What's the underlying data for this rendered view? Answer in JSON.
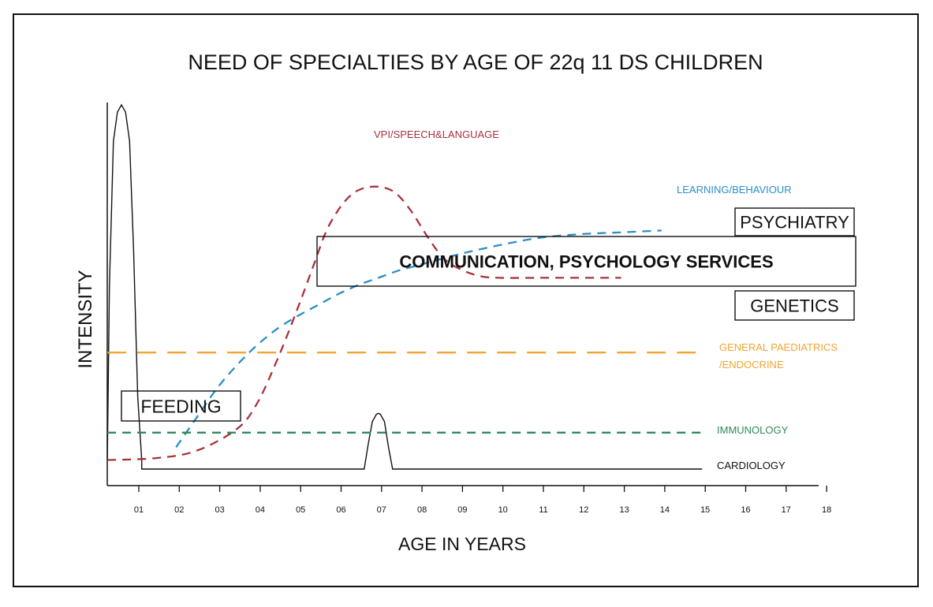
{
  "chart_data": {
    "type": "line",
    "title": "NEED OF SPECIALTIES BY AGE OF 22q 11 DS CHILDREN",
    "xlabel": "AGE IN YEARS",
    "ylabel": "INTENSITY",
    "x_ticks": [
      "01",
      "02",
      "03",
      "04",
      "05",
      "06",
      "07",
      "08",
      "09",
      "10",
      "11",
      "12",
      "13",
      "14",
      "15",
      "16",
      "17",
      "18"
    ],
    "xlim": [
      0.5,
      18
    ],
    "ylim": [
      0,
      100
    ],
    "series": [
      {
        "name": "CARDIOLOGY",
        "color": "#111111",
        "style": "solid",
        "x": [
          0.3,
          0.35,
          0.45,
          0.55,
          0.65,
          0.75,
          0.85,
          0.95,
          1.05,
          1.15,
          1.15,
          6.65,
          6.75,
          6.85,
          6.95,
          7.0,
          7.05,
          7.15,
          7.25,
          7.35,
          15.0
        ],
        "y": [
          2.5,
          50,
          90,
          98,
          100,
          98,
          90,
          60,
          20,
          2.5,
          0,
          0,
          7,
          13,
          15,
          15.3,
          15,
          13,
          6,
          0,
          0
        ]
      },
      {
        "name": "VPI/SPEECH&LANGUAGE",
        "color": "#a8323c",
        "style": "dashed",
        "x": [
          0.3,
          1.5,
          2.5,
          3.5,
          4.0,
          4.5,
          5.0,
          5.4,
          5.7,
          6.0,
          6.3,
          6.6,
          7.0,
          7.4,
          7.8,
          8.2,
          8.6,
          9.0,
          9.5,
          10.0,
          11.0,
          12.0,
          13.0
        ],
        "y": [
          2.5,
          3,
          5,
          11,
          18,
          30,
          44,
          56,
          65,
          71,
          75,
          77,
          77.5,
          76,
          71,
          64,
          58,
          55,
          53,
          52.5,
          52.5,
          52.5,
          52.5
        ]
      },
      {
        "name": "LEARNING/BEHAVIOUR",
        "color": "#2a8fc6",
        "style": "dashed",
        "x": [
          2.0,
          2.5,
          3.0,
          3.5,
          4.0,
          4.5,
          5.0,
          5.5,
          6.0,
          6.5,
          7.0,
          7.5,
          8.0,
          9.0,
          10.0,
          11.0,
          12.0,
          13.0,
          14.0
        ],
        "y": [
          6,
          14,
          22,
          28.5,
          34,
          38.5,
          42,
          45,
          48,
          50.5,
          52.5,
          54.5,
          56,
          59,
          61.5,
          63.5,
          64.5,
          65,
          65.5
        ]
      },
      {
        "name": "GENERAL PAEDIATRICS /ENDOCRINE",
        "color": "#f2a530",
        "style": "long-dashed",
        "x": [
          0.3,
          15.0
        ],
        "y": [
          32,
          32
        ]
      },
      {
        "name": "IMMUNOLOGY",
        "color": "#2e8a58",
        "style": "dashed",
        "x": [
          0.3,
          15.0
        ],
        "y": [
          10,
          10
        ]
      }
    ],
    "boxes": [
      {
        "label": "FEEDING"
      },
      {
        "label": "COMMUNICATION, PSYCHOLOGY SERVICES"
      },
      {
        "label": "PSYCHIATRY"
      },
      {
        "label": "GENETICS"
      }
    ],
    "grid": false,
    "legend": "inline labels at right end of each curve"
  }
}
